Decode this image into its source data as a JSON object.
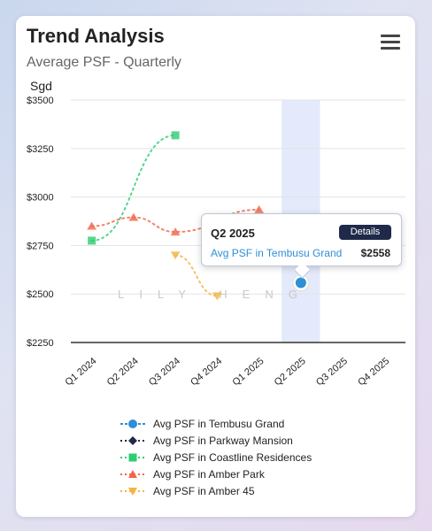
{
  "card": {
    "title": "Trend Analysis",
    "subtitle": "Average PSF - Quarterly",
    "menu_icon": "hamburger-menu-icon"
  },
  "watermark": "LILY HENG",
  "chart_data": {
    "type": "line",
    "ylabel": "Sgd",
    "categories": [
      "Q1 2024",
      "Q2 2024",
      "Q3 2024",
      "Q4 2024",
      "Q1 2025",
      "Q2 2025",
      "Q3 2025",
      "Q4 2025"
    ],
    "ylim": [
      2250,
      3500
    ],
    "yticks": [
      2250,
      2500,
      2750,
      3000,
      3250,
      3500
    ],
    "ytick_labels": [
      "$2250",
      "$2500",
      "$2750",
      "$3000",
      "$3250",
      "$3500"
    ],
    "grid": true,
    "highlight_category": "Q2 2025",
    "series": [
      {
        "name": "Avg PSF in Tembusu Grand",
        "color": "#2e8fd6",
        "marker": "circle",
        "values": [
          null,
          null,
          null,
          null,
          null,
          2558,
          null,
          null
        ]
      },
      {
        "name": "Avg PSF in Parkway Mansion",
        "color": "#1f2a4a",
        "marker": "diamond",
        "values": [
          null,
          null,
          null,
          null,
          null,
          null,
          null,
          null
        ]
      },
      {
        "name": "Avg PSF in Coastline Residences",
        "color": "#2ecc71",
        "marker": "square",
        "values": [
          2775,
          null,
          3318,
          null,
          null,
          null,
          null,
          null
        ]
      },
      {
        "name": "Avg PSF in Amber Park",
        "color": "#f0654a",
        "marker": "triangle",
        "values": [
          2850,
          2895,
          2820,
          null,
          2935,
          null,
          null,
          null
        ]
      },
      {
        "name": "Avg PSF in Amber 45",
        "color": "#f5b342",
        "marker": "triangle-down",
        "values": [
          null,
          null,
          2700,
          2490,
          null,
          null,
          null,
          null
        ]
      }
    ],
    "legend_position": "bottom"
  },
  "tooltip": {
    "title": "Q2 2025",
    "button_label": "Details",
    "series_name": "Avg PSF in Tembusu Grand",
    "value": "$2558"
  }
}
